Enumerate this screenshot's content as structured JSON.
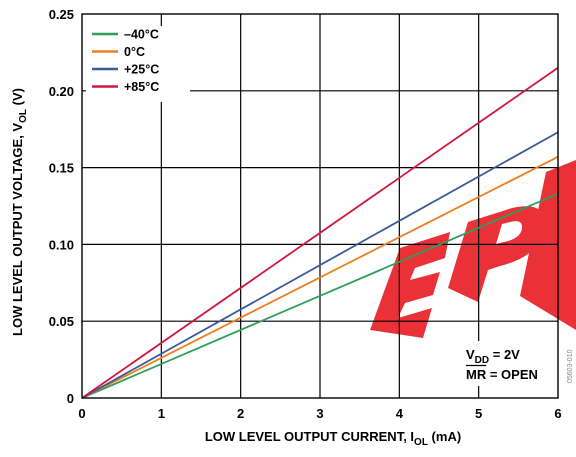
{
  "chart_data": {
    "type": "line",
    "xlabel": {
      "main": "LOW LEVEL OUTPUT CURRENT, I",
      "sub": "OL",
      "suffix": " (mA)"
    },
    "ylabel": {
      "main": "LOW LEVEL OUTPUT VOLTAGE, V",
      "sub": "OL",
      "suffix": " (V)"
    },
    "xlim": [
      0,
      6
    ],
    "ylim": [
      0,
      0.25
    ],
    "x_ticks": [
      "0",
      "1",
      "2",
      "3",
      "4",
      "5",
      "6"
    ],
    "y_ticks": [
      "0",
      "0.05",
      "0.10",
      "0.15",
      "0.20",
      "0.25"
    ],
    "grid": true,
    "legend_position": "top-left",
    "series": [
      {
        "name": "–40°C",
        "color": "#2e9e5b",
        "x": [
          0,
          6
        ],
        "y": [
          0,
          0.133
        ]
      },
      {
        "name": "0°C",
        "color": "#f07d1e",
        "x": [
          0,
          6
        ],
        "y": [
          0,
          0.157
        ]
      },
      {
        "name": "+25°C",
        "color": "#3a5b9a",
        "x": [
          0,
          6
        ],
        "y": [
          0,
          0.173
        ]
      },
      {
        "name": "+85°C",
        "color": "#d0173e",
        "x": [
          0,
          6
        ],
        "y": [
          0,
          0.215
        ]
      }
    ],
    "annotation": {
      "line1_main": "V",
      "line1_sub": "DD",
      "line1_rest": " = 2V",
      "line2_over": "MR",
      "line2_rest": " = OPEN"
    },
    "figure_id": "05603-010"
  }
}
